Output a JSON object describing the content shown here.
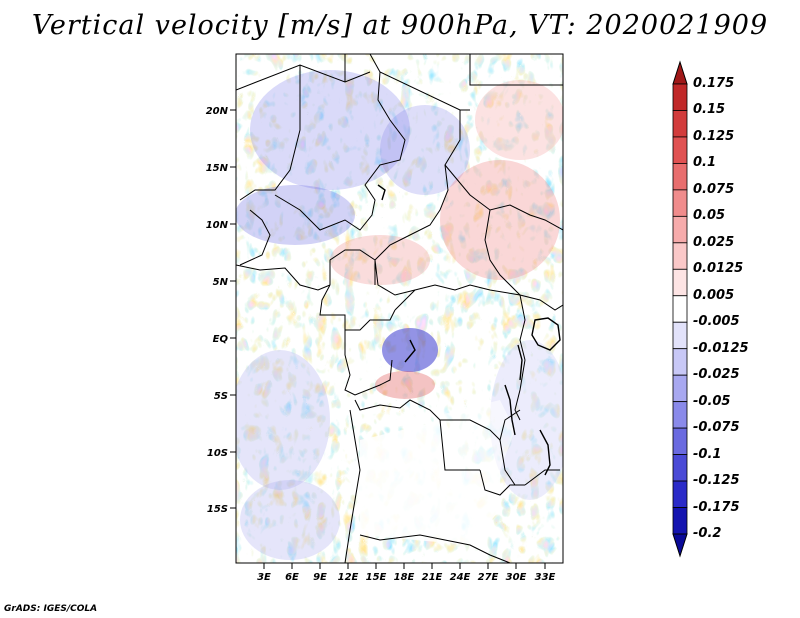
{
  "title": "Vertical velocity [m/s] at 900hPa, VT: 2020021909",
  "credit": "GrADS: IGES/COLA",
  "map": {
    "lat_labels": [
      "20N",
      "15N",
      "10N",
      "5N",
      "EQ",
      "5S",
      "10S",
      "15S"
    ],
    "lon_labels": [
      "3E",
      "6E",
      "9E",
      "12E",
      "15E",
      "18E",
      "21E",
      "24E",
      "27E",
      "30E",
      "33E"
    ]
  },
  "colorbar": {
    "labels": [
      "0.175",
      "0.15",
      "0.125",
      "0.1",
      "0.075",
      "0.05",
      "0.025",
      "0.0125",
      "0.005",
      "-0.005",
      "-0.0125",
      "-0.025",
      "-0.05",
      "-0.075",
      "-0.1",
      "-0.125",
      "-0.175",
      "-0.2"
    ],
    "colors": [
      "#a01818",
      "#c02828",
      "#d23c3c",
      "#e05252",
      "#e86e6e",
      "#f08c8c",
      "#f6abab",
      "#fac8c8",
      "#fde4e4",
      "#ffffff",
      "#e2e2fa",
      "#c8c8f6",
      "#a8a8f0",
      "#8a8aea",
      "#6a6ae0",
      "#4a4ad6",
      "#2a2ac8",
      "#1414b0",
      "#0a0a98"
    ]
  }
}
